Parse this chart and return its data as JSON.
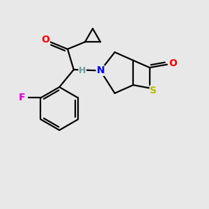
{
  "background_color": "#e8e8e8",
  "atom_colors": {
    "O": "#ff0000",
    "F": "#e000e0",
    "N": "#0000ff",
    "S": "#b8b800",
    "C": "#000000",
    "H": "#6a9a9a"
  },
  "bond_color": "#000000",
  "bond_width": 1.6,
  "font_size_atoms": 10,
  "font_size_H": 9
}
